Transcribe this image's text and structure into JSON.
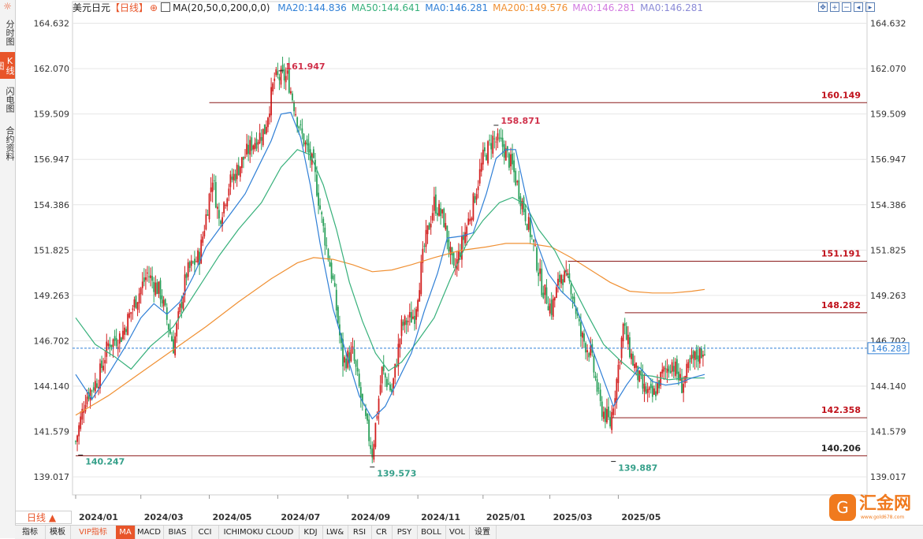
{
  "app": {
    "side_tabs": [
      "分时图",
      "K线图",
      "闪电图",
      "合约资料"
    ],
    "active_side_tab": 1,
    "settings_icon": "sun-gear-icon",
    "symbol": "美元日元",
    "period_tag": "【日线】",
    "indicator": "MA(20,50,0,200,0,0)",
    "legend": [
      {
        "text": "MA20:144.836",
        "color": "#2f7fd6"
      },
      {
        "text": "MA50:144.641",
        "color": "#36b07a"
      },
      {
        "text": "MA0:146.281",
        "color": "#2f7fd6"
      },
      {
        "text": "MA200:149.576",
        "color": "#f09033"
      },
      {
        "text": "MA0:146.281",
        "color": "#d27be0"
      },
      {
        "text": "MA0:146.281",
        "color": "#8a8ad6"
      }
    ],
    "toolbar_icons": [
      "move-icon",
      "zoom-in-icon",
      "zoom-out-icon",
      "arrow-left-icon",
      "arrow-right-icon"
    ],
    "period_selector": "日线 ▲",
    "bottom_tabs": [
      "指标",
      "模板",
      "VIP指标",
      "MA",
      "MACD",
      "BIAS",
      "CCI",
      "ICHIMOKU CLOUD",
      "KDJ",
      "LW&",
      "RSI",
      "CR",
      "PSY",
      "BOLL",
      "VOL",
      "设置"
    ],
    "active_bottom_tab": "MA",
    "logo_text": "汇金网",
    "logo_sub": "www.gold678.com"
  },
  "chart_data": {
    "type": "line",
    "title": "",
    "xlabel": "",
    "ylabel": "",
    "y_ticks": [
      164.632,
      162.07,
      159.509,
      156.947,
      154.386,
      151.825,
      149.263,
      146.702,
      144.14,
      141.579,
      139.017
    ],
    "ylim": [
      138.0,
      165.5
    ],
    "x_ticks": [
      "2024/01",
      "2024/03",
      "2024/05",
      "2024/07",
      "2024/09",
      "2024/11",
      "2025/01",
      "2025/03",
      "2025/05"
    ],
    "x_tick_index": [
      0,
      40,
      82,
      124,
      167,
      210,
      250,
      291,
      333
    ],
    "current_price": 146.283,
    "candles_count": 387,
    "close_path": [
      [
        0,
        141.0
      ],
      [
        6,
        143.5
      ],
      [
        14,
        144.6
      ],
      [
        20,
        146.5
      ],
      [
        28,
        147.0
      ],
      [
        36,
        148.8
      ],
      [
        44,
        150.5
      ],
      [
        52,
        149.4
      ],
      [
        60,
        146.4
      ],
      [
        68,
        150.5
      ],
      [
        76,
        151.5
      ],
      [
        84,
        156.0
      ],
      [
        88,
        153.5
      ],
      [
        94,
        155.5
      ],
      [
        100,
        156.5
      ],
      [
        108,
        157.8
      ],
      [
        116,
        158.6
      ],
      [
        122,
        161.5
      ],
      [
        130,
        161.6
      ],
      [
        138,
        158.5
      ],
      [
        146,
        156.5
      ],
      [
        152,
        153.0
      ],
      [
        158,
        150.0
      ],
      [
        164,
        145.5
      ],
      [
        170,
        146.0
      ],
      [
        176,
        143.0
      ],
      [
        182,
        140.4
      ],
      [
        188,
        145.0
      ],
      [
        194,
        143.8
      ],
      [
        200,
        147.5
      ],
      [
        208,
        148.2
      ],
      [
        214,
        152.0
      ],
      [
        220,
        154.5
      ],
      [
        226,
        153.5
      ],
      [
        232,
        150.5
      ],
      [
        238,
        152.5
      ],
      [
        244,
        154.5
      ],
      [
        250,
        157.0
      ],
      [
        256,
        158.1
      ],
      [
        262,
        157.7
      ],
      [
        268,
        156.5
      ],
      [
        274,
        154.5
      ],
      [
        280,
        152.5
      ],
      [
        286,
        149.8
      ],
      [
        292,
        148.5
      ],
      [
        298,
        150.5
      ],
      [
        304,
        149.8
      ],
      [
        310,
        147.0
      ],
      [
        316,
        146.0
      ],
      [
        322,
        143.0
      ],
      [
        328,
        142.0
      ],
      [
        332,
        144.5
      ],
      [
        336,
        147.5
      ],
      [
        342,
        145.5
      ],
      [
        348,
        144.0
      ],
      [
        354,
        143.5
      ],
      [
        360,
        144.8
      ],
      [
        366,
        145.5
      ],
      [
        372,
        144.2
      ],
      [
        378,
        145.5
      ],
      [
        386,
        146.3
      ]
    ],
    "ma20_path": [
      [
        0,
        144.8
      ],
      [
        10,
        143.4
      ],
      [
        20,
        144.8
      ],
      [
        30,
        146.3
      ],
      [
        40,
        148.0
      ],
      [
        48,
        148.8
      ],
      [
        56,
        148.2
      ],
      [
        64,
        148.9
      ],
      [
        72,
        150.3
      ],
      [
        80,
        152.0
      ],
      [
        88,
        153.0
      ],
      [
        96,
        154.0
      ],
      [
        104,
        155.0
      ],
      [
        112,
        156.5
      ],
      [
        120,
        158.0
      ],
      [
        126,
        159.5
      ],
      [
        132,
        159.6
      ],
      [
        138,
        158.2
      ],
      [
        144,
        155.5
      ],
      [
        150,
        152.2
      ],
      [
        158,
        148.5
      ],
      [
        166,
        146.0
      ],
      [
        174,
        143.6
      ],
      [
        182,
        142.3
      ],
      [
        190,
        143.0
      ],
      [
        198,
        144.5
      ],
      [
        206,
        146.0
      ],
      [
        214,
        148.4
      ],
      [
        222,
        150.5
      ],
      [
        228,
        152.5
      ],
      [
        236,
        152.6
      ],
      [
        244,
        152.8
      ],
      [
        252,
        155.0
      ],
      [
        258,
        157.0
      ],
      [
        264,
        157.5
      ],
      [
        270,
        157.5
      ],
      [
        276,
        155.0
      ],
      [
        282,
        152.5
      ],
      [
        290,
        150.5
      ],
      [
        298,
        149.5
      ],
      [
        306,
        148.8
      ],
      [
        314,
        147.0
      ],
      [
        322,
        145.0
      ],
      [
        330,
        143.0
      ],
      [
        338,
        144.2
      ],
      [
        346,
        145.2
      ],
      [
        354,
        144.4
      ],
      [
        362,
        144.2
      ],
      [
        370,
        144.3
      ],
      [
        378,
        144.6
      ],
      [
        386,
        144.8
      ]
    ],
    "ma50_path": [
      [
        0,
        148.0
      ],
      [
        12,
        146.5
      ],
      [
        24,
        145.8
      ],
      [
        34,
        145.1
      ],
      [
        46,
        146.4
      ],
      [
        60,
        147.5
      ],
      [
        74,
        149.5
      ],
      [
        88,
        151.5
      ],
      [
        100,
        153.0
      ],
      [
        114,
        154.5
      ],
      [
        126,
        156.5
      ],
      [
        136,
        157.5
      ],
      [
        144,
        157.2
      ],
      [
        152,
        155.5
      ],
      [
        160,
        153.0
      ],
      [
        168,
        150.0
      ],
      [
        176,
        147.8
      ],
      [
        184,
        146.0
      ],
      [
        192,
        145.0
      ],
      [
        200,
        145.5
      ],
      [
        210,
        146.7
      ],
      [
        220,
        148.0
      ],
      [
        230,
        150.2
      ],
      [
        240,
        152.2
      ],
      [
        250,
        153.5
      ],
      [
        260,
        154.5
      ],
      [
        268,
        154.8
      ],
      [
        276,
        154.4
      ],
      [
        284,
        153.0
      ],
      [
        294,
        151.8
      ],
      [
        304,
        150.0
      ],
      [
        314,
        148.2
      ],
      [
        324,
        146.5
      ],
      [
        334,
        145.6
      ],
      [
        344,
        144.8
      ],
      [
        354,
        144.7
      ],
      [
        364,
        144.5
      ],
      [
        374,
        144.6
      ],
      [
        386,
        144.6
      ]
    ],
    "ma200_path": [
      [
        0,
        142.5
      ],
      [
        20,
        143.6
      ],
      [
        40,
        144.9
      ],
      [
        60,
        146.2
      ],
      [
        80,
        147.5
      ],
      [
        100,
        148.9
      ],
      [
        120,
        150.2
      ],
      [
        136,
        151.1
      ],
      [
        146,
        151.4
      ],
      [
        158,
        151.3
      ],
      [
        170,
        151.0
      ],
      [
        182,
        150.6
      ],
      [
        194,
        150.7
      ],
      [
        206,
        151.0
      ],
      [
        220,
        151.4
      ],
      [
        236,
        151.8
      ],
      [
        252,
        152.0
      ],
      [
        264,
        152.2
      ],
      [
        278,
        152.2
      ],
      [
        292,
        152.0
      ],
      [
        304,
        151.4
      ],
      [
        316,
        150.7
      ],
      [
        328,
        150.0
      ],
      [
        340,
        149.5
      ],
      [
        354,
        149.4
      ],
      [
        366,
        149.4
      ],
      [
        378,
        149.5
      ],
      [
        386,
        149.6
      ]
    ],
    "horizontal_levels": [
      {
        "value": 160.149,
        "label": "160.149",
        "from_index": 82
      },
      {
        "value": 151.191,
        "label": "151.191",
        "from_index": 302
      },
      {
        "value": 148.282,
        "label": "148.282",
        "from_index": 337
      },
      {
        "value": 142.358,
        "label": "142.358",
        "from_index": 329
      },
      {
        "value": 140.206,
        "label": "140.206",
        "from_index": 0
      }
    ],
    "extreme_labels": [
      {
        "index": 126,
        "value": 161.947,
        "label": "161.947",
        "position": "high"
      },
      {
        "index": 258,
        "value": 158.871,
        "label": "158.871",
        "position": "high"
      },
      {
        "index": 3,
        "value": 140.247,
        "label": "140.247",
        "position": "low"
      },
      {
        "index": 182,
        "value": 139.573,
        "label": "139.573",
        "position": "low"
      },
      {
        "index": 330,
        "value": 139.887,
        "label": "139.887",
        "position": "low"
      }
    ],
    "colors": {
      "up": "#d22020",
      "down": "#2aa05a",
      "ma20": "#2f7fd6",
      "ma50": "#36b07a",
      "ma200": "#f09033",
      "level": "#8b1a1a",
      "current": "#2f7fd6",
      "grid": "#e6e6e6"
    },
    "grid": true
  }
}
